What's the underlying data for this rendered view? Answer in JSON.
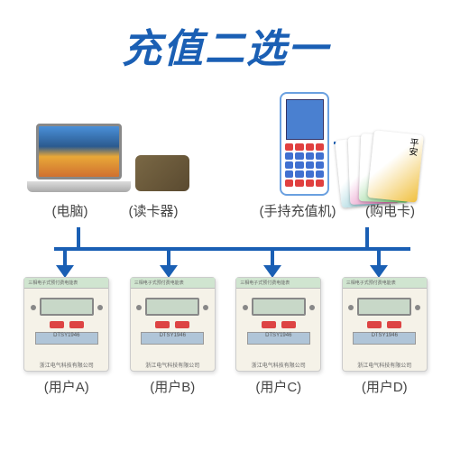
{
  "title": "充值二选一",
  "colors": {
    "title": "#1a5fb4",
    "line": "#1a5fb4",
    "arrow": "#1a5fb4",
    "key_red": "#e04040",
    "key_blue": "#4070d0"
  },
  "top_items": {
    "laptop_label": "(电脑)",
    "reader_label": "(读卡器)",
    "handheld_label": "(手持充值机)",
    "cards_label": "(购电卡)"
  },
  "card_colors": [
    "#58b0c0",
    "#d850a0",
    "#60c060",
    "#f0c040"
  ],
  "card_text": "平安",
  "meter_header": "三相电子式预付费电能表",
  "meter_plate": "DTSY1946",
  "meter_footer": "浙江电气科技有限公司",
  "users": [
    {
      "label": "(用户A)"
    },
    {
      "label": "(用户B)"
    },
    {
      "label": "(用户C)"
    },
    {
      "label": "(用户D)"
    }
  ],
  "layout": {
    "drop_in_positions": [
      85,
      405
    ],
    "drop_out_positions": [
      70,
      185,
      300,
      418
    ],
    "label_widths": [
      "115px",
      "70px",
      "90px",
      "110px",
      "95px"
    ]
  }
}
